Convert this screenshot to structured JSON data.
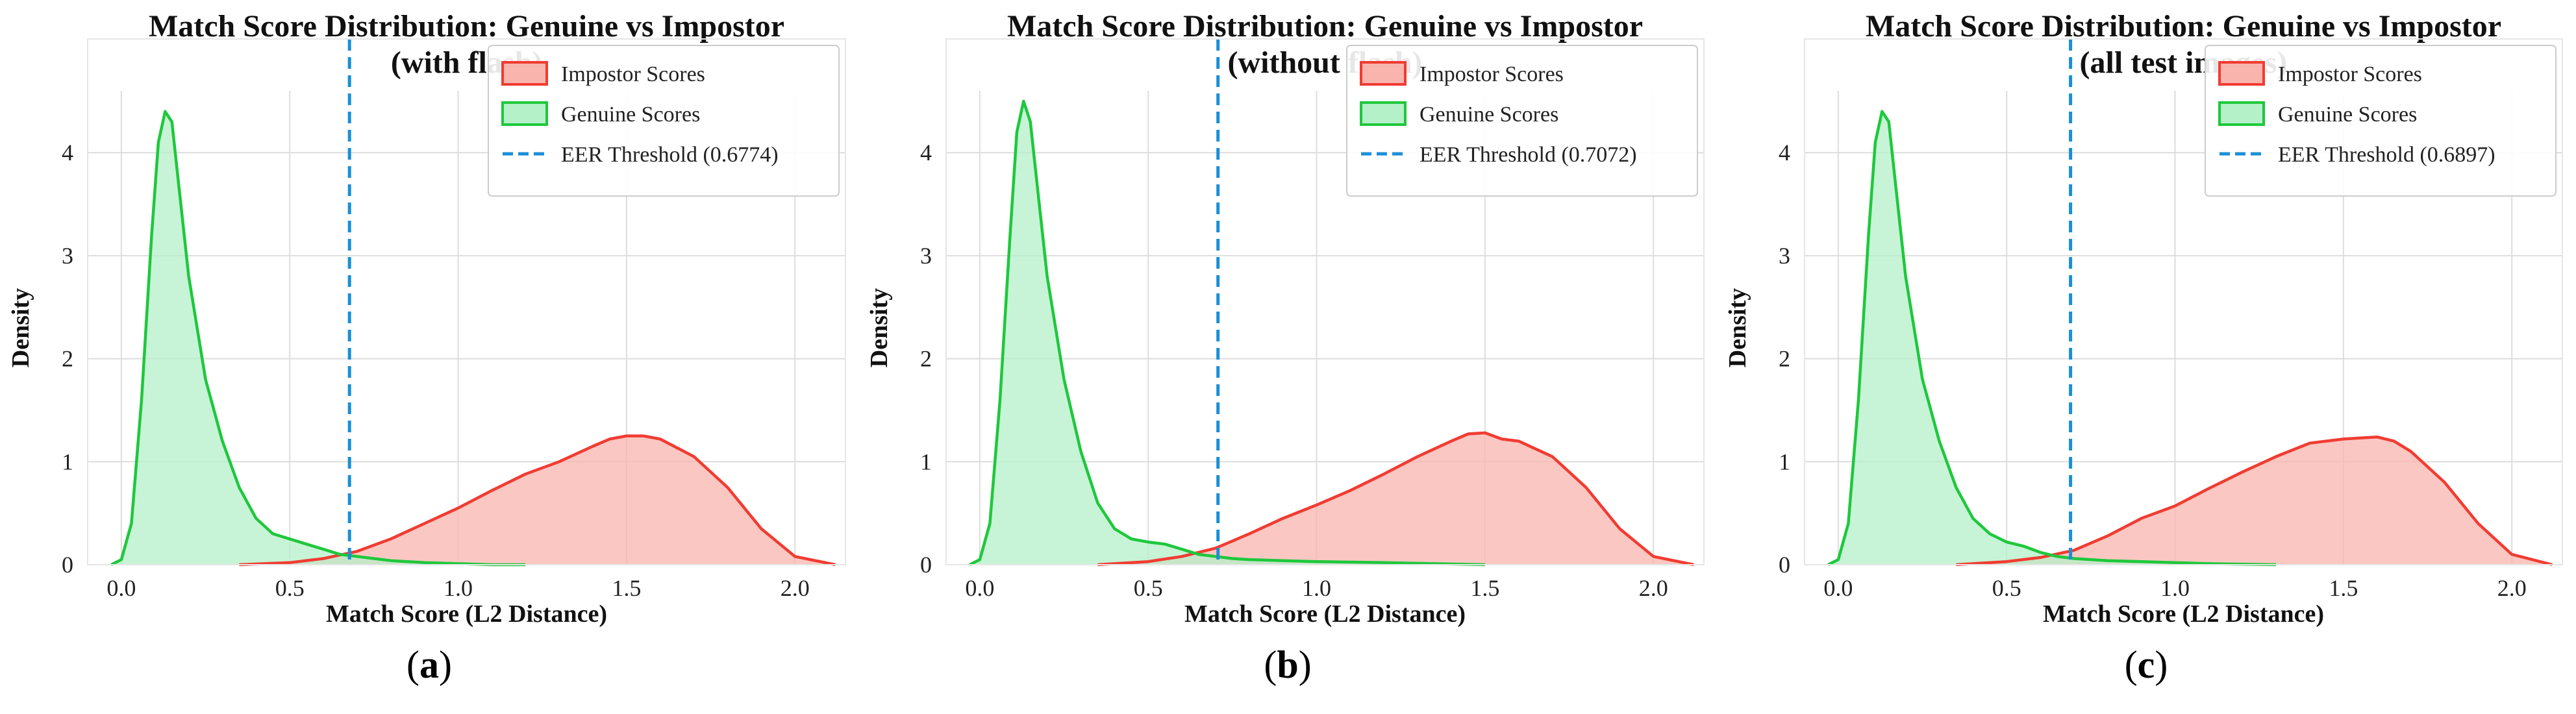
{
  "chart_data": [
    {
      "type": "area",
      "title": "Match Score Distribution: Genuine vs Impostor",
      "subtitle": "(with flash)",
      "xlabel": "Match Score (L2 Distance)",
      "ylabel": "Density",
      "xlim": [
        -0.1,
        2.15
      ],
      "ylim": [
        0,
        4.6
      ],
      "xticks": [
        "0.0",
        "0.5",
        "1.0",
        "1.5",
        "2.0"
      ],
      "yticks": [
        "0",
        "1",
        "2",
        "3",
        "4"
      ],
      "grid": true,
      "legend_position": "top-right",
      "panel_label": "a",
      "threshold": {
        "name": "EER Threshold (0.6774)",
        "value": 0.6774,
        "color": "#1a8fd6"
      },
      "series": [
        {
          "name": "Impostor Scores",
          "color": "#f03c32",
          "fill": "#f9b4ae",
          "x": [
            0.35,
            0.5,
            0.6,
            0.7,
            0.8,
            0.9,
            1.0,
            1.1,
            1.2,
            1.3,
            1.4,
            1.45,
            1.5,
            1.55,
            1.6,
            1.7,
            1.8,
            1.9,
            2.0,
            2.12
          ],
          "y": [
            0.0,
            0.02,
            0.06,
            0.13,
            0.25,
            0.4,
            0.55,
            0.72,
            0.88,
            1.0,
            1.15,
            1.22,
            1.25,
            1.25,
            1.22,
            1.05,
            0.75,
            0.35,
            0.08,
            0.0
          ]
        },
        {
          "name": "Genuine Scores",
          "color": "#1ec83c",
          "fill": "#b4f0c8",
          "x": [
            -0.03,
            0.0,
            0.03,
            0.06,
            0.09,
            0.11,
            0.13,
            0.15,
            0.17,
            0.2,
            0.25,
            0.3,
            0.35,
            0.4,
            0.45,
            0.5,
            0.55,
            0.6,
            0.65,
            0.7,
            0.75,
            0.8,
            0.9,
            1.0,
            1.1,
            1.2
          ],
          "y": [
            0.0,
            0.05,
            0.4,
            1.6,
            3.2,
            4.1,
            4.4,
            4.3,
            3.7,
            2.8,
            1.8,
            1.2,
            0.75,
            0.45,
            0.3,
            0.25,
            0.2,
            0.15,
            0.1,
            0.08,
            0.06,
            0.04,
            0.02,
            0.01,
            0.0,
            0.0
          ]
        }
      ]
    },
    {
      "type": "area",
      "title": "Match Score Distribution: Genuine vs Impostor",
      "subtitle": "(without flash)",
      "xlabel": "Match Score (L2 Distance)",
      "ylabel": "Density",
      "xlim": [
        -0.1,
        2.15
      ],
      "ylim": [
        0,
        4.6
      ],
      "xticks": [
        "0.0",
        "0.5",
        "1.0",
        "1.5",
        "2.0"
      ],
      "yticks": [
        "0",
        "1",
        "2",
        "3",
        "4"
      ],
      "grid": true,
      "legend_position": "top-right",
      "panel_label": "b",
      "threshold": {
        "name": "EER Threshold (0.7072)",
        "value": 0.7072,
        "color": "#1a8fd6"
      },
      "series": [
        {
          "name": "Impostor Scores",
          "color": "#f03c32",
          "fill": "#f9b4ae",
          "x": [
            0.35,
            0.5,
            0.6,
            0.7,
            0.8,
            0.9,
            1.0,
            1.1,
            1.2,
            1.3,
            1.4,
            1.45,
            1.5,
            1.55,
            1.6,
            1.7,
            1.8,
            1.9,
            2.0,
            2.12
          ],
          "y": [
            0.0,
            0.03,
            0.08,
            0.16,
            0.3,
            0.45,
            0.58,
            0.72,
            0.88,
            1.05,
            1.2,
            1.27,
            1.28,
            1.22,
            1.2,
            1.05,
            0.75,
            0.35,
            0.08,
            0.0
          ]
        },
        {
          "name": "Genuine Scores",
          "color": "#1ec83c",
          "fill": "#b4f0c8",
          "x": [
            -0.03,
            0.0,
            0.03,
            0.06,
            0.09,
            0.11,
            0.13,
            0.15,
            0.17,
            0.2,
            0.25,
            0.3,
            0.35,
            0.4,
            0.45,
            0.5,
            0.55,
            0.6,
            0.65,
            0.7,
            0.75,
            0.8,
            0.9,
            1.0,
            1.2,
            1.5
          ],
          "y": [
            0.0,
            0.05,
            0.4,
            1.6,
            3.2,
            4.2,
            4.5,
            4.3,
            3.7,
            2.8,
            1.8,
            1.1,
            0.6,
            0.35,
            0.25,
            0.22,
            0.2,
            0.15,
            0.1,
            0.08,
            0.06,
            0.05,
            0.04,
            0.03,
            0.02,
            0.0
          ]
        }
      ]
    },
    {
      "type": "area",
      "title": "Match Score Distribution: Genuine vs Impostor",
      "subtitle": "(all test images)",
      "xlabel": "Match Score (L2 Distance)",
      "ylabel": "Density",
      "xlim": [
        -0.1,
        2.15
      ],
      "ylim": [
        0,
        4.6
      ],
      "xticks": [
        "0.0",
        "0.5",
        "1.0",
        "1.5",
        "2.0"
      ],
      "yticks": [
        "0",
        "1",
        "2",
        "3",
        "4"
      ],
      "grid": true,
      "legend_position": "top-right",
      "panel_label": "c",
      "threshold": {
        "name": "EER Threshold (0.6897)",
        "value": 0.6897,
        "color": "#1a8fd6"
      },
      "series": [
        {
          "name": "Impostor Scores",
          "color": "#f03c32",
          "fill": "#f9b4ae",
          "x": [
            0.35,
            0.5,
            0.6,
            0.7,
            0.8,
            0.9,
            1.0,
            1.1,
            1.2,
            1.3,
            1.4,
            1.5,
            1.55,
            1.6,
            1.65,
            1.7,
            1.8,
            1.9,
            2.0,
            2.12
          ],
          "y": [
            0.0,
            0.03,
            0.07,
            0.14,
            0.28,
            0.45,
            0.57,
            0.74,
            0.9,
            1.05,
            1.18,
            1.22,
            1.23,
            1.24,
            1.2,
            1.1,
            0.8,
            0.4,
            0.1,
            0.0
          ]
        },
        {
          "name": "Genuine Scores",
          "color": "#1ec83c",
          "fill": "#b4f0c8",
          "x": [
            -0.03,
            0.0,
            0.03,
            0.06,
            0.09,
            0.11,
            0.13,
            0.15,
            0.17,
            0.2,
            0.25,
            0.3,
            0.35,
            0.4,
            0.45,
            0.5,
            0.55,
            0.6,
            0.65,
            0.7,
            0.75,
            0.8,
            0.9,
            1.0,
            1.1,
            1.3
          ],
          "y": [
            0.0,
            0.05,
            0.4,
            1.6,
            3.2,
            4.1,
            4.4,
            4.3,
            3.7,
            2.8,
            1.8,
            1.2,
            0.75,
            0.45,
            0.3,
            0.22,
            0.18,
            0.12,
            0.08,
            0.06,
            0.05,
            0.04,
            0.03,
            0.02,
            0.01,
            0.0
          ]
        }
      ]
    }
  ]
}
